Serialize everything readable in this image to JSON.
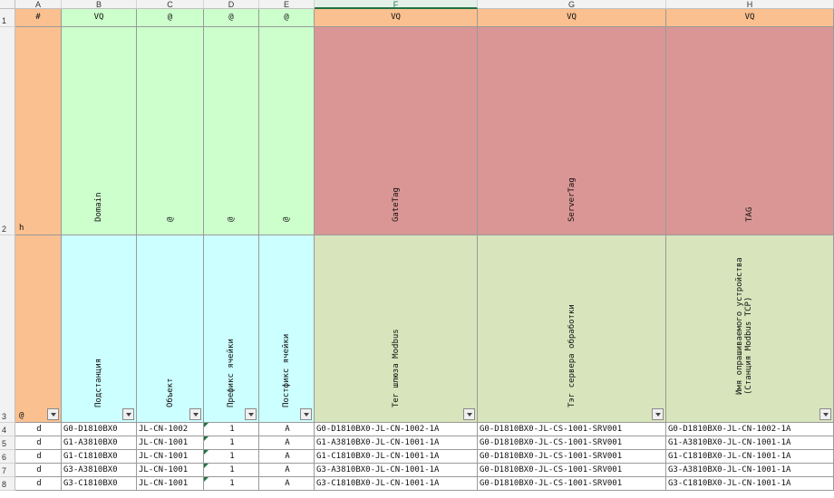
{
  "columns": [
    "A",
    "B",
    "C",
    "D",
    "E",
    "F",
    "G",
    "H"
  ],
  "active_column": "F",
  "row_numbers": [
    "1",
    "2",
    "3",
    "4",
    "5",
    "6",
    "7",
    "8"
  ],
  "row1": [
    "#",
    "VQ",
    "@",
    "@",
    "@",
    "VQ",
    "VQ",
    "VQ"
  ],
  "row2": {
    "a": "h",
    "b": "Domain",
    "c": "@",
    "d": "@",
    "e": "@",
    "f": "GateTag",
    "g": "ServerTag",
    "h": "TAG"
  },
  "row3": {
    "a": "@",
    "b": "Подстанция",
    "c": "Объект",
    "d": "Префикс ячейки",
    "e": "Постфикс ячейки",
    "f": "Тег шлюза Modbus",
    "g": "Тэг сервера обработки",
    "h_line1": "Имя опрашиваемого устройства",
    "h_line2": "(Станция Modbus TCP)"
  },
  "data_rows": [
    {
      "a": "d",
      "b": "G0-D1810BX0",
      "c": "JL-CN-1002",
      "d": "1",
      "e": "A",
      "f": "G0-D1810BX0-JL-CN-1002-1A",
      "g": "G0-D1810BX0-JL-CS-1001-SRV001",
      "h": "G0-D1810BX0-JL-CN-1002-1A"
    },
    {
      "a": "d",
      "b": "G1-A3810BX0",
      "c": "JL-CN-1001",
      "d": "1",
      "e": "A",
      "f": "G1-A3810BX0-JL-CN-1001-1A",
      "g": "G0-D1810BX0-JL-CS-1001-SRV001",
      "h": "G1-A3810BX0-JL-CN-1001-1A"
    },
    {
      "a": "d",
      "b": "G1-C1810BX0",
      "c": "JL-CN-1001",
      "d": "1",
      "e": "A",
      "f": "G1-C1810BX0-JL-CN-1001-1A",
      "g": "G0-D1810BX0-JL-CS-1001-SRV001",
      "h": "G1-C1810BX0-JL-CN-1001-1A"
    },
    {
      "a": "d",
      "b": "G3-A3810BX0",
      "c": "JL-CN-1001",
      "d": "1",
      "e": "A",
      "f": "G3-A3810BX0-JL-CN-1001-1A",
      "g": "G0-D1810BX0-JL-CS-1001-SRV001",
      "h": "G3-A3810BX0-JL-CN-1001-1A"
    },
    {
      "a": "d",
      "b": "G3-C1810BX0",
      "c": "JL-CN-1001",
      "d": "1",
      "e": "A",
      "f": "G3-C1810BX0-JL-CN-1001-1A",
      "g": "G0-D1810BX0-JL-CS-1001-SRV001",
      "h": "G3-C1810BX0-JL-CN-1001-1A"
    }
  ],
  "colors": {
    "orange": "#fac090",
    "green": "#ccffcc",
    "red": "#da9694",
    "cyan": "#ccffff",
    "olive": "#d8e4bc",
    "excel_green": "#217346"
  }
}
